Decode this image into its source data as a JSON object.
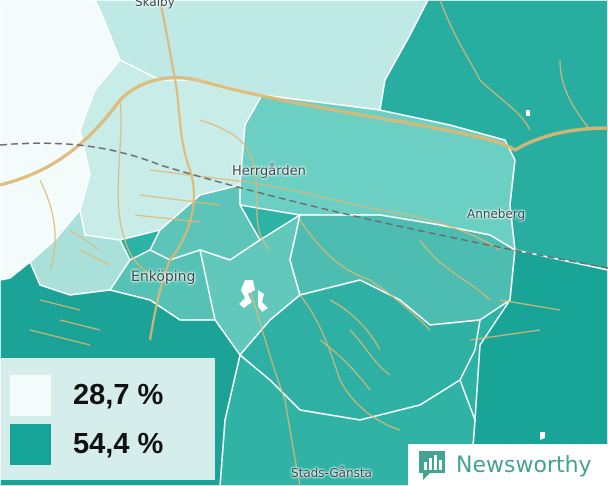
{
  "map": {
    "places": {
      "skalby": "Skalby",
      "herrgarden": "Herrgården",
      "anneberg": "Anneberg",
      "enkoping": "Enköping",
      "stads_gansta": "Stads-Gånsta"
    },
    "colors": {
      "low": "#f3fcfb",
      "high": "#16a499",
      "background": "#ffffff",
      "roads": "#e0b873",
      "borders": "#ffffff"
    }
  },
  "legend": {
    "items": [
      {
        "value": "28,7 %",
        "color": "#f3fcfb"
      },
      {
        "value": "54,4 %",
        "color": "#16a499"
      }
    ]
  },
  "brand": {
    "name": "Newsworthy",
    "color": "#45a394",
    "icon": "bar-chart-speech-bubble-icon"
  }
}
